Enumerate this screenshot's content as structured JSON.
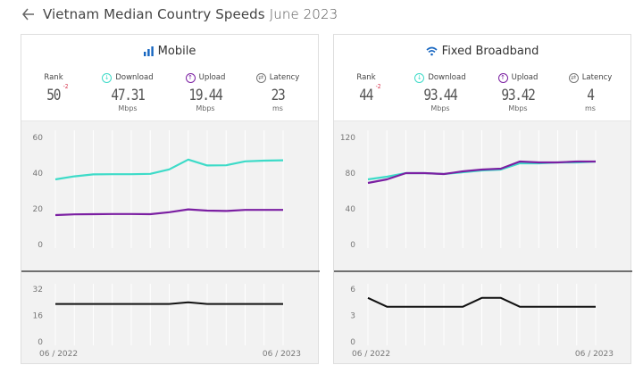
{
  "page": {
    "title": "Vietnam Median Country Speeds",
    "subtitle": "June 2023"
  },
  "panels": [
    {
      "key": "mobile",
      "title": "Mobile",
      "icon": "bar-signal-icon",
      "metrics": {
        "rank": {
          "label": "Rank",
          "value": "50",
          "delta": "-2"
        },
        "download": {
          "label": "Download",
          "value": "47.31",
          "unit": "Mbps"
        },
        "upload": {
          "label": "Upload",
          "value": "19.44",
          "unit": "Mbps"
        },
        "latency": {
          "label": "Latency",
          "value": "23",
          "unit": "ms"
        }
      }
    },
    {
      "key": "fixed",
      "title": "Fixed Broadband",
      "icon": "wifi-icon",
      "metrics": {
        "rank": {
          "label": "Rank",
          "value": "44",
          "delta": "-2"
        },
        "download": {
          "label": "Download",
          "value": "93.44",
          "unit": "Mbps"
        },
        "upload": {
          "label": "Upload",
          "value": "93.42",
          "unit": "Mbps"
        },
        "latency": {
          "label": "Latency",
          "value": "4",
          "unit": "ms"
        }
      }
    }
  ],
  "colors": {
    "download": "#3ddbc8",
    "upload": "#7b1fa2",
    "latency": "#111111",
    "grid": "#ffffff",
    "rank_delta": "#d6304a"
  },
  "chart_data": [
    {
      "type": "line",
      "title": "",
      "x_start_label": "06 / 2022",
      "x_end_label": "06 / 2023",
      "ylim": [
        0,
        60
      ],
      "yticks": [
        0,
        20,
        40,
        60
      ],
      "series": [
        {
          "name": "Download",
          "values": [
            36.5,
            38.2,
            39.3,
            39.4,
            39.4,
            39.6,
            42.1,
            47.6,
            44.3,
            44.4,
            46.6,
            47.0,
            47.2
          ]
        },
        {
          "name": "Upload",
          "values": [
            16.5,
            16.9,
            17.0,
            17.1,
            17.1,
            17.0,
            18.1,
            19.7,
            19.0,
            18.8,
            19.4,
            19.4,
            19.4
          ]
        }
      ]
    },
    {
      "type": "line",
      "title": "",
      "ylim": [
        0,
        32
      ],
      "yticks": [
        0,
        16,
        32
      ],
      "series": [
        {
          "name": "Latency",
          "values": [
            23,
            23,
            23,
            23,
            23,
            23,
            23,
            24,
            23,
            23,
            23,
            23,
            23
          ]
        }
      ]
    },
    {
      "type": "line",
      "title": "",
      "x_start_label": "06 / 2022",
      "x_end_label": "06 / 2023",
      "ylim": [
        0,
        120
      ],
      "yticks": [
        0,
        40,
        80,
        120
      ],
      "series": [
        {
          "name": "Download",
          "values": [
            73,
            76,
            80,
            80,
            79,
            81,
            83,
            84,
            91,
            91,
            92,
            92,
            93
          ]
        },
        {
          "name": "Upload",
          "values": [
            69,
            73,
            80,
            80,
            79,
            82,
            84,
            85,
            93,
            92,
            92,
            93,
            93
          ]
        }
      ]
    },
    {
      "type": "line",
      "title": "",
      "ylim": [
        0,
        6
      ],
      "yticks": [
        0,
        3,
        6
      ],
      "series": [
        {
          "name": "Latency",
          "values": [
            5,
            4,
            4,
            4,
            4,
            4,
            5,
            5,
            4,
            4,
            4,
            4,
            4
          ]
        }
      ]
    }
  ]
}
